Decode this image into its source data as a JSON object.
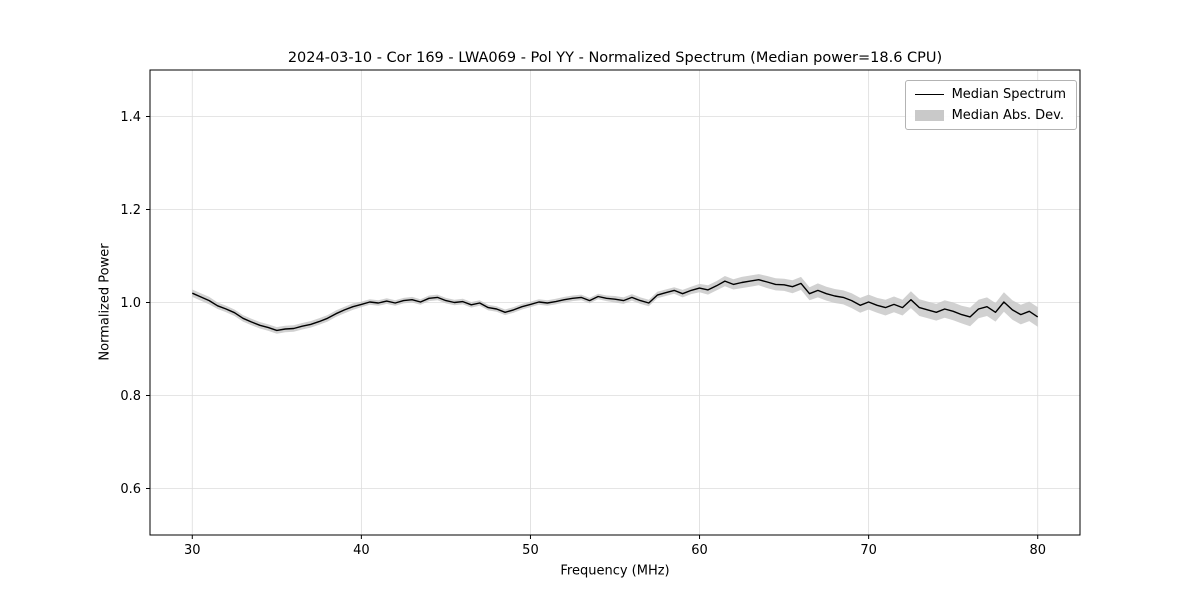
{
  "figure": {
    "title": "2024-03-10 - Cor 169 - LWA069 - Pol YY - Normalized Spectrum (Median power=18.6 CPU)",
    "xlabel": "Frequency (MHz)",
    "ylabel": "Normalized Power"
  },
  "chart_data": {
    "type": "line",
    "title": "2024-03-10 - Cor 169 - LWA069 - Pol YY - Normalized Spectrum (Median power=18.6 CPU)",
    "xlabel": "Frequency (MHz)",
    "ylabel": "Normalized Power",
    "xlim": [
      27.5,
      82.5
    ],
    "ylim": [
      0.5,
      1.5
    ],
    "xticks": [
      30,
      40,
      50,
      60,
      70,
      80
    ],
    "yticks": [
      0.6,
      0.8,
      1.0,
      1.2,
      1.4
    ],
    "grid": true,
    "legend_position": "upper right",
    "colors": {
      "line": "#000000",
      "band": "#c9c9c9",
      "grid": "#dcdcdc",
      "spine": "#000000"
    },
    "series": [
      {
        "name": "Median Spectrum",
        "type": "line",
        "color": "#000000",
        "x": [
          30,
          30.5,
          31,
          31.5,
          32,
          32.5,
          33,
          33.5,
          34,
          34.5,
          35,
          35.5,
          36,
          36.5,
          37,
          37.5,
          38,
          38.5,
          39,
          39.5,
          40,
          40.5,
          41,
          41.5,
          42,
          42.5,
          43,
          43.5,
          44,
          44.5,
          45,
          45.5,
          46,
          46.5,
          47,
          47.5,
          48,
          48.5,
          49,
          49.5,
          50,
          50.5,
          51,
          51.5,
          52,
          52.5,
          53,
          53.5,
          54,
          54.5,
          55,
          55.5,
          56,
          56.5,
          57,
          57.5,
          58,
          58.5,
          59,
          59.5,
          60,
          60.5,
          61,
          61.5,
          62,
          62.5,
          63,
          63.5,
          64,
          64.5,
          65,
          65.5,
          66,
          66.5,
          67,
          67.5,
          68,
          68.5,
          69,
          69.5,
          70,
          70.5,
          71,
          71.5,
          72,
          72.5,
          73,
          73.5,
          74,
          74.5,
          75,
          75.5,
          76,
          76.5,
          77,
          77.5,
          78,
          78.5,
          79,
          79.5,
          80
        ],
        "y": [
          1.02,
          1.012,
          1.004,
          0.993,
          0.986,
          0.978,
          0.966,
          0.958,
          0.951,
          0.946,
          0.94,
          0.943,
          0.944,
          0.949,
          0.953,
          0.959,
          0.966,
          0.976,
          0.984,
          0.991,
          0.996,
          1.001,
          0.999,
          1.003,
          0.999,
          1.004,
          1.006,
          1.001,
          1.009,
          1.011,
          1.004,
          1.0,
          1.002,
          0.995,
          0.999,
          0.989,
          0.986,
          0.979,
          0.984,
          0.991,
          0.996,
          1.001,
          0.999,
          1.002,
          1.006,
          1.009,
          1.011,
          1.004,
          1.013,
          1.009,
          1.007,
          1.004,
          1.011,
          1.004,
          0.999,
          1.016,
          1.021,
          1.026,
          1.019,
          1.026,
          1.031,
          1.027,
          1.036,
          1.046,
          1.039,
          1.043,
          1.046,
          1.049,
          1.044,
          1.039,
          1.038,
          1.034,
          1.041,
          1.019,
          1.026,
          1.019,
          1.014,
          1.011,
          1.004,
          0.994,
          1.001,
          0.994,
          0.989,
          0.996,
          0.989,
          1.006,
          0.989,
          0.984,
          0.979,
          0.986,
          0.981,
          0.974,
          0.969,
          0.986,
          0.991,
          0.979,
          1.001,
          0.984,
          0.974,
          0.981,
          0.969
        ]
      },
      {
        "name": "Median Abs. Dev.",
        "type": "band",
        "color": "#c9c9c9",
        "half_width": [
          0.008,
          0.008,
          0.008,
          0.007,
          0.007,
          0.007,
          0.007,
          0.007,
          0.007,
          0.007,
          0.007,
          0.007,
          0.007,
          0.007,
          0.007,
          0.007,
          0.007,
          0.007,
          0.007,
          0.007,
          0.006,
          0.006,
          0.006,
          0.006,
          0.006,
          0.006,
          0.006,
          0.006,
          0.006,
          0.006,
          0.006,
          0.006,
          0.006,
          0.006,
          0.006,
          0.006,
          0.006,
          0.006,
          0.006,
          0.006,
          0.006,
          0.006,
          0.006,
          0.006,
          0.006,
          0.006,
          0.006,
          0.006,
          0.006,
          0.006,
          0.007,
          0.007,
          0.007,
          0.007,
          0.007,
          0.007,
          0.007,
          0.007,
          0.008,
          0.008,
          0.009,
          0.01,
          0.01,
          0.011,
          0.011,
          0.012,
          0.012,
          0.012,
          0.013,
          0.013,
          0.013,
          0.014,
          0.014,
          0.014,
          0.015,
          0.015,
          0.015,
          0.015,
          0.016,
          0.016,
          0.016,
          0.016,
          0.017,
          0.017,
          0.017,
          0.018,
          0.018,
          0.018,
          0.018,
          0.019,
          0.019,
          0.019,
          0.02,
          0.02,
          0.02,
          0.02,
          0.021,
          0.021,
          0.021,
          0.021,
          0.021
        ]
      }
    ]
  }
}
